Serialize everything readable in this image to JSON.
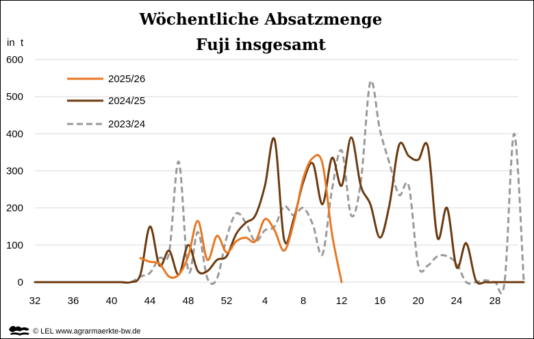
{
  "chart_data": {
    "type": "line",
    "title": "Wöchentliche Absatzmenge",
    "subtitle": "Fuji insgesamt",
    "ylabel": "in  t",
    "xlabel": "",
    "ylim": [
      0,
      600
    ],
    "yticks": [
      0,
      100,
      200,
      300,
      400,
      500,
      600
    ],
    "grid": true,
    "legend_position": "top-left",
    "x_tick_labels": [
      "32",
      "36",
      "40",
      "44",
      "48",
      "52",
      "4",
      "8",
      "12",
      "16",
      "20",
      "24",
      "28"
    ],
    "week_order": [
      "32",
      "33",
      "34",
      "35",
      "36",
      "37",
      "38",
      "39",
      "40",
      "41",
      "42",
      "43",
      "44",
      "45",
      "46",
      "47",
      "48",
      "49",
      "50",
      "51",
      "52",
      "1",
      "2",
      "3",
      "4",
      "5",
      "6",
      "7",
      "8",
      "9",
      "10",
      "11",
      "12",
      "13",
      "14",
      "15",
      "16",
      "17",
      "18",
      "19",
      "20",
      "21",
      "22",
      "23",
      "24",
      "25",
      "26",
      "27",
      "28",
      "29",
      "30",
      "31"
    ],
    "series": [
      {
        "name": "2025/26",
        "color": "#E87722",
        "dash": "solid",
        "values": [
          null,
          null,
          null,
          null,
          null,
          null,
          null,
          null,
          null,
          null,
          null,
          65,
          55,
          50,
          15,
          20,
          70,
          165,
          60,
          125,
          80,
          110,
          120,
          110,
          170,
          140,
          85,
          160,
          280,
          335,
          320,
          130,
          0,
          null,
          null,
          null,
          null,
          null,
          null,
          null,
          null,
          null,
          null,
          null,
          null,
          null,
          null,
          null,
          null,
          null,
          null,
          null
        ]
      },
      {
        "name": "2024/25",
        "color": "#6B3A0F",
        "dash": "solid",
        "values": [
          0,
          0,
          0,
          0,
          0,
          0,
          0,
          0,
          0,
          0,
          0,
          20,
          150,
          45,
          85,
          20,
          100,
          30,
          30,
          60,
          70,
          130,
          160,
          180,
          260,
          385,
          115,
          170,
          270,
          320,
          210,
          335,
          260,
          390,
          260,
          210,
          120,
          210,
          370,
          340,
          330,
          365,
          120,
          200,
          40,
          105,
          5,
          0,
          0,
          0,
          0,
          0
        ]
      },
      {
        "name": "2023/24",
        "color": "#999999",
        "dash": "dashed",
        "values": [
          0,
          0,
          0,
          0,
          0,
          0,
          0,
          0,
          0,
          0,
          0,
          15,
          25,
          65,
          80,
          325,
          30,
          135,
          10,
          10,
          120,
          185,
          160,
          110,
          140,
          150,
          205,
          180,
          200,
          155,
          75,
          250,
          355,
          180,
          270,
          540,
          410,
          320,
          235,
          260,
          45,
          45,
          70,
          70,
          50,
          0,
          0,
          5,
          0,
          0,
          400,
          5
        ]
      }
    ]
  },
  "footer": {
    "logo_icon": "lion-icon",
    "credit": "© LEL www.agrarmaerkte-bw.de"
  }
}
